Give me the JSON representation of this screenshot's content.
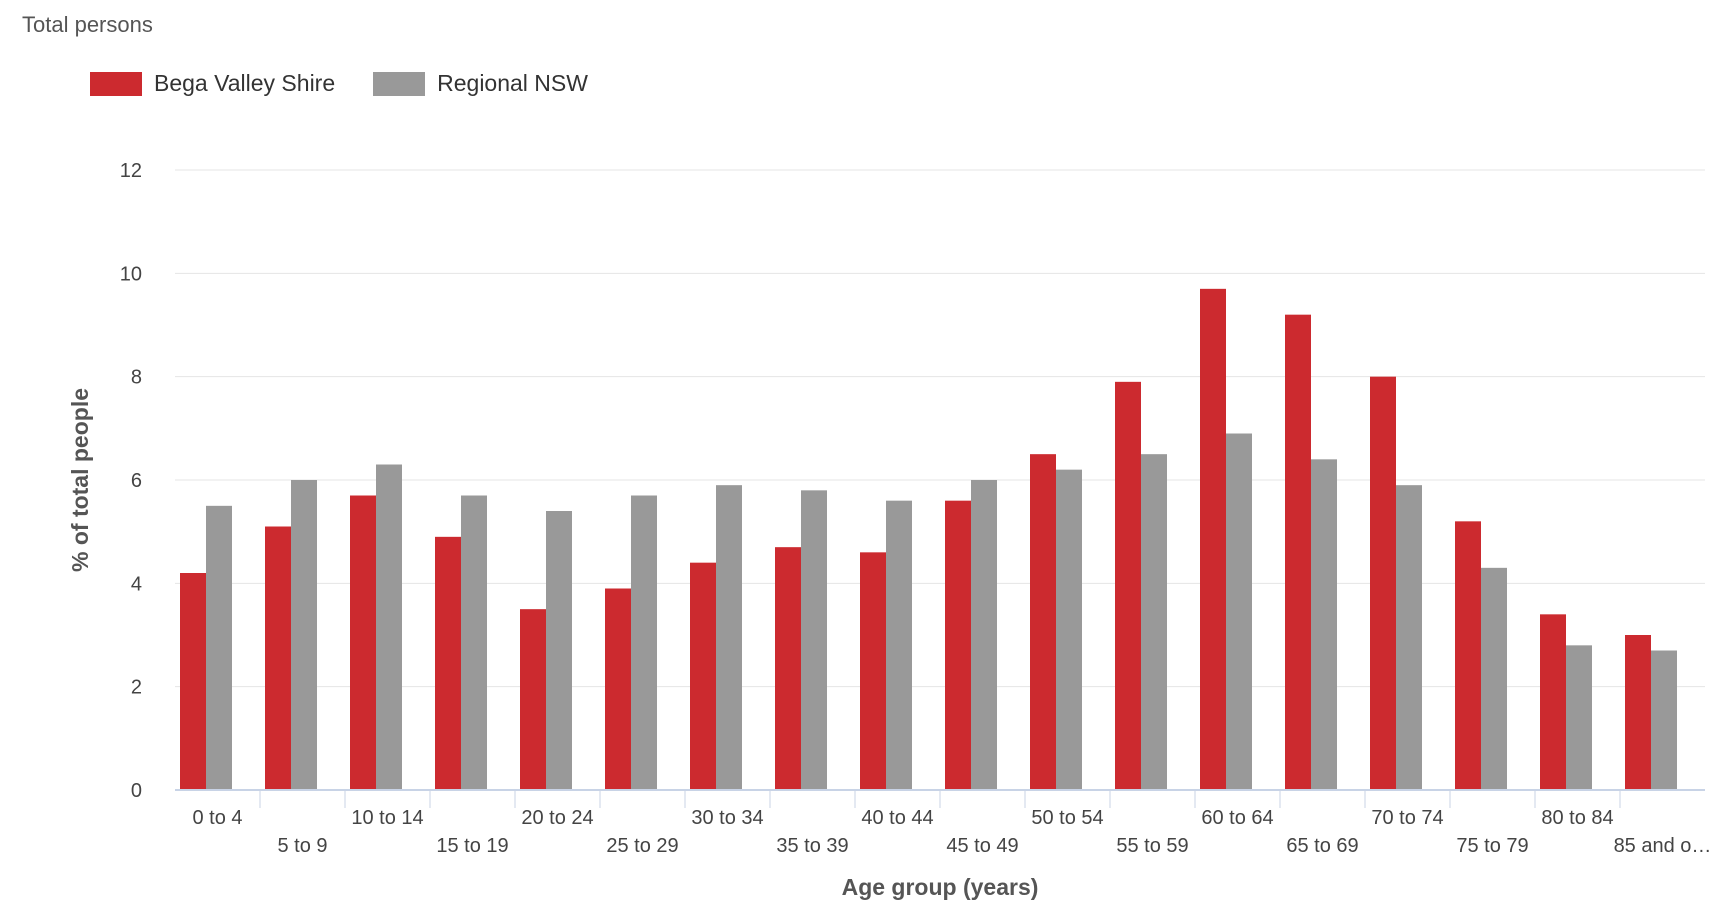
{
  "chart_data": {
    "type": "bar",
    "title": "Total persons",
    "xlabel": "Age group (years)",
    "ylabel": "% of total people",
    "ylim": [
      0,
      12
    ],
    "yticks": [
      0,
      2,
      4,
      6,
      8,
      10,
      12
    ],
    "grid": true,
    "legend_position": "top-left",
    "categories": [
      "0 to 4",
      "5 to 9",
      "10 to 14",
      "15 to 19",
      "20 to 24",
      "25 to 29",
      "30 to 34",
      "35 to 39",
      "40 to 44",
      "45 to 49",
      "50 to 54",
      "55 to 59",
      "60 to 64",
      "65 to 69",
      "70 to 74",
      "75 to 79",
      "80 to 84",
      "85 and o…"
    ],
    "series": [
      {
        "name": "Bega Valley Shire",
        "color": "#cc2a2f",
        "values": [
          4.2,
          5.1,
          5.7,
          4.9,
          3.5,
          3.9,
          4.4,
          4.7,
          4.6,
          5.6,
          6.5,
          7.9,
          9.7,
          9.2,
          8.0,
          5.2,
          3.4,
          3.0
        ]
      },
      {
        "name": "Regional NSW",
        "color": "#999999",
        "values": [
          5.5,
          6.0,
          6.3,
          5.7,
          5.4,
          5.7,
          5.9,
          5.8,
          5.6,
          6.0,
          6.2,
          6.5,
          6.9,
          6.4,
          5.9,
          4.3,
          2.8,
          2.7
        ]
      }
    ]
  }
}
